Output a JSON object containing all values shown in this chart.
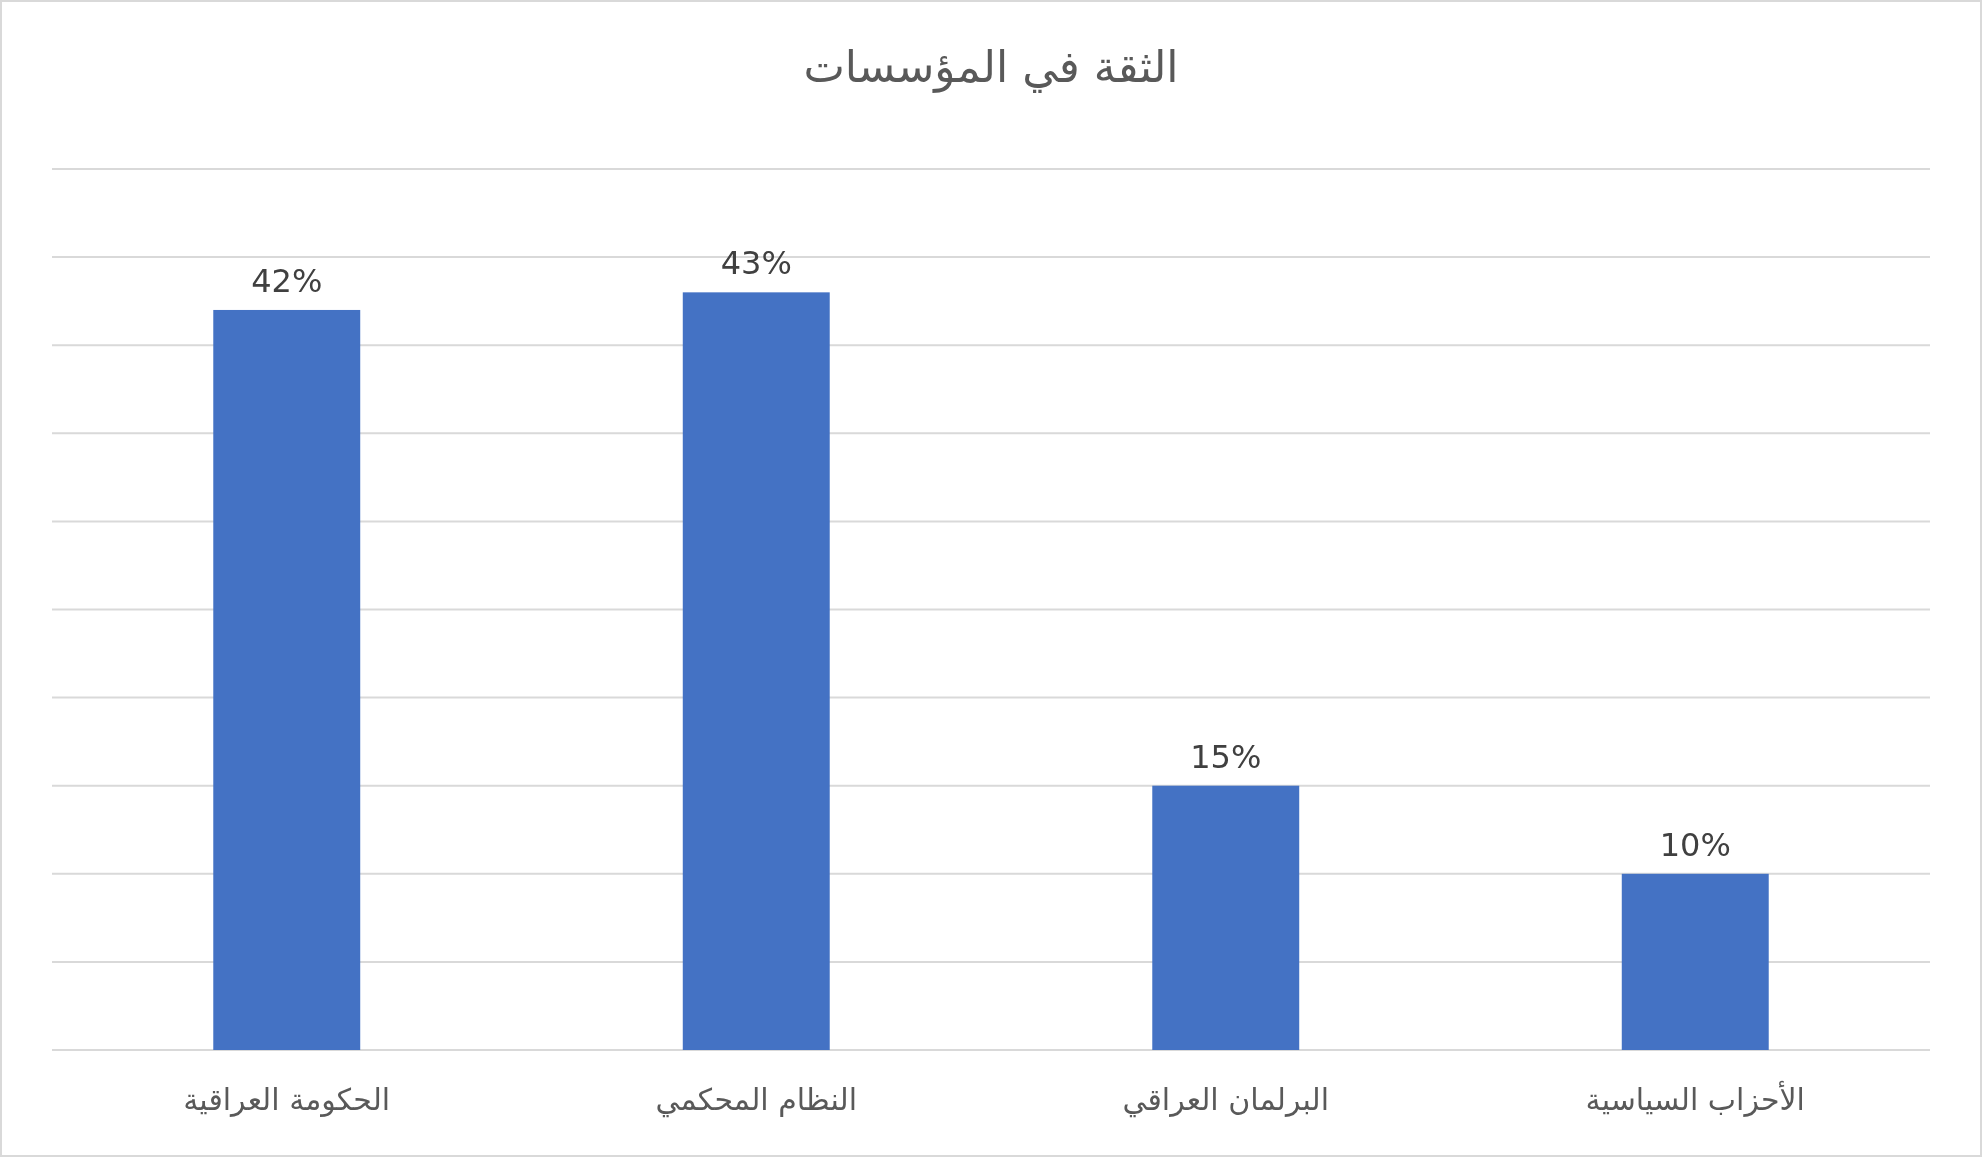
{
  "chart_data": {
    "type": "bar",
    "title": "الثقة في المؤسسات",
    "categories": [
      "الحكومة العراقية",
      "النظام المحكمي",
      "البرلمان العراقي",
      "الأحزاب السياسية"
    ],
    "values": [
      42,
      43,
      15,
      10
    ],
    "value_labels": [
      "42%",
      "43%",
      "15%",
      "10%"
    ],
    "color": "#4472c4",
    "ylim": [
      0,
      50
    ],
    "yticks": [
      {
        "value": 0,
        "label": null
      },
      {
        "value": 5,
        "label": null
      },
      {
        "value": 10,
        "label": null
      },
      {
        "value": 15,
        "label": null
      },
      {
        "value": 20,
        "label": null
      },
      {
        "value": 25,
        "label": null
      },
      {
        "value": 30,
        "label": null
      },
      {
        "value": 35,
        "label": null
      },
      {
        "value": 40,
        "label": null
      },
      {
        "value": 45,
        "label": null
      },
      {
        "value": 50,
        "label": null
      }
    ],
    "grid": "y",
    "tick_labels": "x"
  }
}
